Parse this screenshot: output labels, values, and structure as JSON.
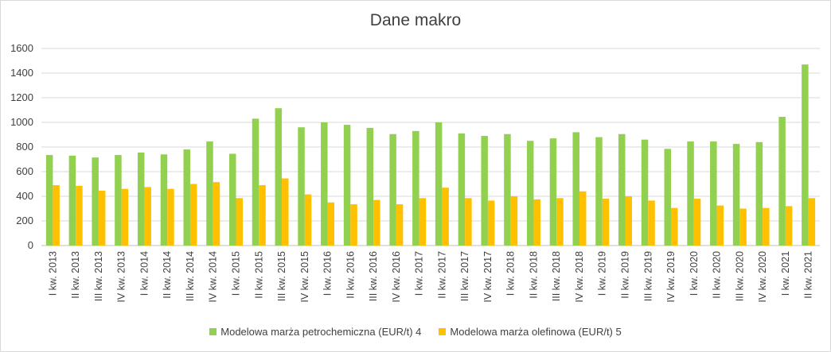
{
  "colors": {
    "series1": "#92d050",
    "series2": "#ffc000",
    "grid": "#d9d9d9",
    "axis": "#bfbfbf",
    "text": "#404040"
  },
  "chart_data": {
    "type": "bar",
    "title": "Dane makro",
    "xlabel": "",
    "ylabel": "",
    "ylim": [
      0,
      1600
    ],
    "yticks": [
      0,
      200,
      400,
      600,
      800,
      1000,
      1200,
      1400,
      1600
    ],
    "grid": true,
    "legend_position": "bottom",
    "categories": [
      "I kw. 2013",
      "II kw. 2013",
      "III kw. 2013",
      "IV kw. 2013",
      "I kw. 2014",
      "II kw. 2014",
      "III kw. 2014",
      "IV kw. 2014",
      "I kw. 2015",
      "II kw. 2015",
      "III kw. 2015",
      "IV kw. 2015",
      "I kw. 2016",
      "II kw. 2016",
      "III kw. 2016",
      "IV kw. 2016",
      "I kw. 2017",
      "II kw. 2017",
      "III kw. 2017",
      "IV kw. 2017",
      "I kw. 2018",
      "II kw. 2018",
      "III kw. 2018",
      "IV kw. 2018",
      "I kw. 2019",
      "II kw. 2019",
      "III kw. 2019",
      "IV kw. 2019",
      "I kw. 2020",
      "II kw. 2020",
      "III kw. 2020",
      "IV kw. 2020",
      "I kw. 2021",
      "II kw. 2021"
    ],
    "series": [
      {
        "name": "Modelowa marża petrochemiczna (EUR/t) 4",
        "color": "#92d050",
        "values": [
          735,
          730,
          715,
          735,
          755,
          740,
          780,
          845,
          745,
          1030,
          1115,
          960,
          1000,
          980,
          955,
          905,
          930,
          1000,
          910,
          890,
          905,
          850,
          870,
          920,
          880,
          905,
          860,
          785,
          845,
          845,
          825,
          840,
          1045,
          1470
        ]
      },
      {
        "name": "Modelowa marża olefinowa (EUR/t) 5",
        "color": "#ffc000",
        "values": [
          490,
          485,
          445,
          460,
          475,
          460,
          500,
          515,
          385,
          490,
          545,
          415,
          350,
          335,
          370,
          335,
          385,
          470,
          385,
          365,
          400,
          375,
          385,
          440,
          380,
          400,
          365,
          305,
          380,
          325,
          300,
          305,
          320,
          385
        ]
      }
    ]
  }
}
